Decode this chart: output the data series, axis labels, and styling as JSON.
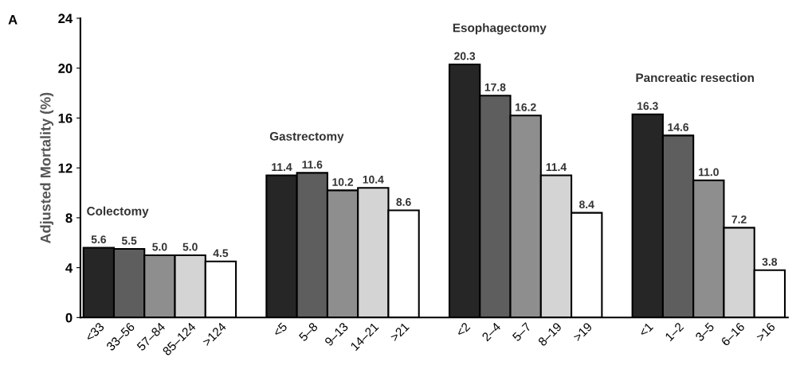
{
  "chart_data": {
    "type": "bar",
    "ylabel": "Adjusted Mortality (%)",
    "categories": [
      "<33",
      "33–56",
      "57–84",
      "85–124",
      ">124",
      null,
      "<5",
      "5–8",
      "9–13",
      "14–21",
      ">21",
      null,
      "<2",
      "2–4",
      "5–7",
      "8–19",
      ">19",
      null,
      "<1",
      "1–2",
      "3–5",
      "6–16",
      ">16"
    ],
    "values": [
      5.6,
      5.5,
      5.0,
      5.0,
      4.5,
      null,
      11.4,
      11.6,
      10.2,
      10.4,
      8.6,
      null,
      20.3,
      17.8,
      16.2,
      11.4,
      8.4,
      null,
      16.3,
      14.6,
      11.0,
      7.2,
      3.8
    ],
    "colors": [
      "#262626",
      "#5e5e5e",
      "#8e8e8e",
      "#d4d4d4",
      "#ffffff",
      null,
      "#262626",
      "#5e5e5e",
      "#8e8e8e",
      "#d4d4d4",
      "#ffffff",
      null,
      "#262626",
      "#5e5e5e",
      "#8e8e8e",
      "#d4d4d4",
      "#ffffff",
      null,
      "#262626",
      "#5e5e5e",
      "#8e8e8e",
      "#d4d4d4",
      "#ffffff"
    ],
    "value_labels": [
      "5.6",
      "5.5",
      "5.0",
      "5.0",
      "4.5",
      null,
      "11.4",
      "11.6",
      "10.2",
      "10.4",
      "8.6",
      null,
      "20.3",
      "17.8",
      "16.2",
      "11.4",
      "8.4",
      null,
      "16.3",
      "14.6",
      "11.0",
      "7.2",
      "3.8"
    ],
    "ylim": [
      0,
      24
    ],
    "yticks": [
      0,
      4,
      8,
      12,
      16,
      20,
      24
    ],
    "grid": false,
    "legend": false,
    "annotations": [
      "A",
      "Colectomy",
      "Gastrectomy",
      "Esophagectomy",
      "Pancreatic resection"
    ]
  }
}
